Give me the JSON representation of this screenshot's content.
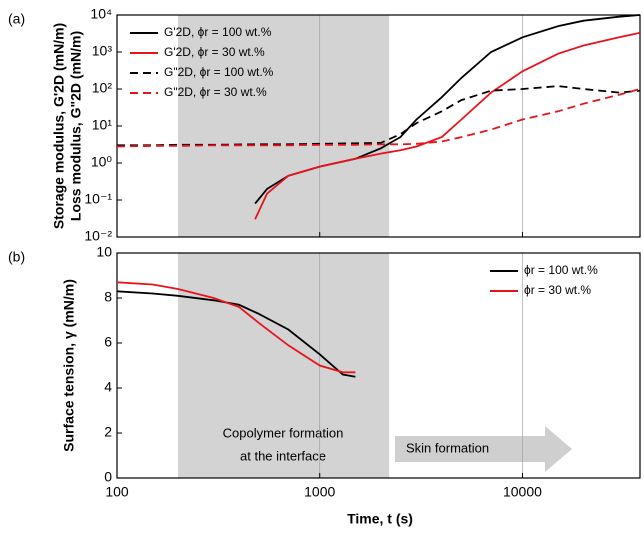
{
  "chart_data": [
    {
      "type": "line",
      "panel_label": "(a)",
      "ylabel": "Storage modulus, G'2D (mN/m)",
      "ylabel2": "Loss modulus, G\"2D (mN/m)",
      "log_x": true,
      "log_y": true,
      "xlim": [
        100,
        38000
      ],
      "ylim": [
        0.01,
        10000
      ],
      "yticks": [
        {
          "value": 0.01,
          "label": "10⁻²"
        },
        {
          "value": 0.1,
          "label": "10⁻¹"
        },
        {
          "value": 1,
          "label": "10⁰"
        },
        {
          "value": 10,
          "label": "10¹"
        },
        {
          "value": 100,
          "label": "10²"
        },
        {
          "value": 1000,
          "label": "10³"
        },
        {
          "value": 10000,
          "label": "10⁴"
        }
      ],
      "legend": "upper left",
      "x": [
        100,
        150,
        200,
        300,
        480,
        550,
        700,
        1000,
        1500,
        2000,
        2500,
        3000,
        4000,
        5000,
        7000,
        10000,
        15000,
        20000,
        30000,
        38000
      ],
      "series": [
        {
          "name": "G'2D,  ϕr = 100 wt.%",
          "color": "#000000",
          "dash": false,
          "values": [
            null,
            null,
            null,
            null,
            0.08,
            0.2,
            0.45,
            0.8,
            1.3,
            2.5,
            5,
            15,
            60,
            200,
            1000,
            2500,
            5000,
            7000,
            9000,
            10000
          ]
        },
        {
          "name": "G'2D,  ϕr = 30 wt.%",
          "color": "#e8141c",
          "dash": false,
          "values": [
            null,
            null,
            null,
            null,
            0.03,
            0.15,
            0.45,
            0.8,
            1.3,
            1.8,
            2.2,
            2.8,
            5,
            15,
            80,
            300,
            900,
            1500,
            2500,
            3300
          ]
        },
        {
          "name": "G\"2D,  ϕr = 100 wt.%",
          "color": "#000000",
          "dash": true,
          "values": [
            3,
            3,
            3.1,
            3.1,
            3.2,
            3.2,
            3.2,
            3.3,
            3.4,
            3.5,
            6,
            12,
            25,
            50,
            90,
            100,
            120,
            100,
            80,
            90
          ]
        },
        {
          "name": "G\"2D,  ϕr = 30 wt.%",
          "color": "#e8141c",
          "dash": true,
          "values": [
            2.8,
            2.9,
            2.9,
            3,
            3,
            3,
            3,
            3.1,
            3.1,
            3.2,
            3.2,
            3.3,
            3.8,
            5,
            8,
            15,
            25,
            40,
            70,
            100
          ]
        }
      ]
    },
    {
      "type": "line",
      "panel_label": "(b)",
      "ylabel": "Surface tension, γ (mN/m)",
      "xlabel": "Time, t (s)",
      "log_x": true,
      "log_y": false,
      "xlim": [
        100,
        38000
      ],
      "ylim": [
        0,
        10
      ],
      "xticks": [
        100,
        1000,
        10000
      ],
      "yticks": [
        0,
        2,
        4,
        6,
        8,
        10
      ],
      "grid": true,
      "legend": "upper right",
      "shaded_range": [
        200,
        2200
      ],
      "annotations": [
        "Copolymer formation",
        "at the interface",
        "Skin formation"
      ],
      "x": [
        100,
        150,
        200,
        300,
        400,
        500,
        700,
        1000,
        1300,
        1500
      ],
      "series": [
        {
          "name": "ϕr = 100 wt.%",
          "color": "#000000",
          "dash": false,
          "values": [
            8.3,
            8.2,
            8.1,
            7.9,
            7.7,
            7.3,
            6.6,
            5.5,
            4.6,
            4.5
          ]
        },
        {
          "name": "ϕr = 30 wt.%",
          "color": "#e8141c",
          "dash": false,
          "values": [
            8.7,
            8.6,
            8.4,
            8.0,
            7.6,
            6.9,
            5.9,
            5.0,
            4.7,
            4.7
          ]
        }
      ]
    }
  ]
}
